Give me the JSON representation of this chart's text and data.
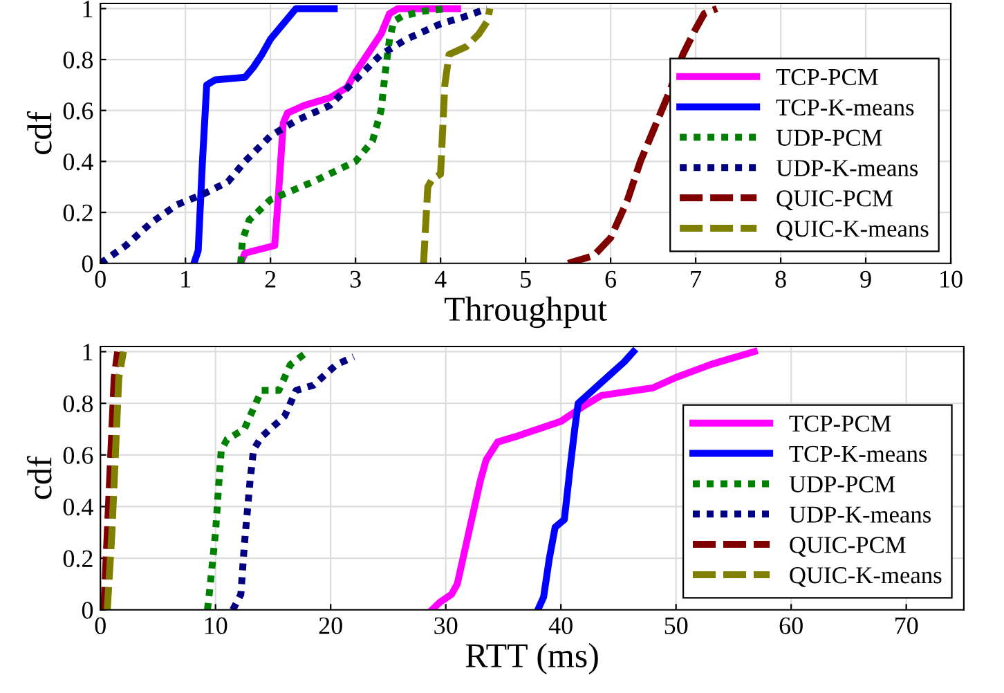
{
  "chart_data": [
    {
      "type": "line",
      "xlabel": "Throughput",
      "ylabel": "cdf",
      "xlim": [
        0,
        10
      ],
      "ylim": [
        0,
        1.02
      ],
      "xticks": [
        0,
        1,
        2,
        3,
        4,
        5,
        6,
        7,
        8,
        9,
        10
      ],
      "yticks": [
        0,
        0.2,
        0.4,
        0.6,
        0.8,
        1
      ],
      "grid": true,
      "legend": "bottom right",
      "marker": "none",
      "series": [
        {
          "name": "TCP-PCM",
          "color": "#ff00ff",
          "line_style": "solid",
          "x": [
            1.65,
            1.7,
            2.05,
            2.1,
            2.15,
            2.2,
            2.4,
            2.7,
            2.9,
            3.0,
            3.1,
            3.2,
            3.3,
            3.4,
            3.5,
            4.2
          ],
          "values": [
            0,
            0.04,
            0.07,
            0.3,
            0.55,
            0.59,
            0.62,
            0.65,
            0.69,
            0.75,
            0.8,
            0.85,
            0.9,
            0.98,
            1,
            1
          ]
        },
        {
          "name": "TCP-K-means",
          "color": "#0000ff",
          "line_style": "solid",
          "x": [
            1.1,
            1.15,
            1.2,
            1.25,
            1.35,
            1.7,
            1.8,
            1.9,
            2.0,
            2.1,
            2.2,
            2.3,
            2.75
          ],
          "values": [
            0,
            0.05,
            0.4,
            0.7,
            0.72,
            0.73,
            0.77,
            0.82,
            0.88,
            0.92,
            0.96,
            1,
            1
          ]
        },
        {
          "name": "UDP-PCM",
          "color": "#008000",
          "line_style": "dotted",
          "x": [
            1.65,
            1.67,
            1.75,
            2.0,
            2.5,
            3.0,
            3.2,
            3.3,
            3.35,
            3.4,
            3.45,
            3.55,
            3.8,
            4.1
          ],
          "values": [
            0,
            0.09,
            0.17,
            0.25,
            0.32,
            0.4,
            0.48,
            0.6,
            0.75,
            0.88,
            0.95,
            0.97,
            0.99,
            1
          ]
        },
        {
          "name": "UDP-K-means",
          "color": "#000080",
          "line_style": "dotted",
          "x": [
            0,
            0.3,
            0.6,
            0.9,
            1.2,
            1.5,
            1.7,
            2.0,
            2.3,
            2.7,
            3.0,
            3.3,
            3.6,
            4.0,
            4.3,
            4.55
          ],
          "values": [
            0,
            0.07,
            0.16,
            0.23,
            0.27,
            0.32,
            0.4,
            0.5,
            0.56,
            0.62,
            0.72,
            0.82,
            0.88,
            0.94,
            0.97,
            1
          ]
        },
        {
          "name": "QUIC-PCM",
          "color": "#800000",
          "line_style": "dashed",
          "x": [
            5.5,
            5.8,
            6.0,
            6.2,
            6.35,
            6.5,
            6.7,
            6.85,
            7.0,
            7.1,
            7.25
          ],
          "values": [
            0,
            0.03,
            0.1,
            0.25,
            0.4,
            0.52,
            0.68,
            0.82,
            0.92,
            0.98,
            1
          ]
        },
        {
          "name": "QUIC-K-means",
          "color": "#808000",
          "line_style": "dashed",
          "x": [
            3.8,
            3.85,
            3.9,
            4.0,
            4.05,
            4.1,
            4.3,
            4.45,
            4.55,
            4.58
          ],
          "values": [
            0,
            0.3,
            0.33,
            0.35,
            0.7,
            0.82,
            0.85,
            0.9,
            0.95,
            1
          ]
        }
      ]
    },
    {
      "type": "line",
      "xlabel": "RTT (ms)",
      "ylabel": "cdf",
      "xlim": [
        0,
        75
      ],
      "ylim": [
        0,
        1.02
      ],
      "xticks": [
        0,
        10,
        20,
        30,
        40,
        50,
        60,
        70
      ],
      "yticks": [
        0,
        0.2,
        0.4,
        0.6,
        0.8,
        1
      ],
      "grid": true,
      "legend": "bottom right",
      "marker": "none",
      "series": [
        {
          "name": "TCP-PCM",
          "color": "#ff00ff",
          "line_style": "solid",
          "x": [
            28.8,
            29.5,
            30.5,
            31,
            32,
            33,
            33.5,
            34.5,
            36,
            38,
            40,
            42,
            43.5,
            48,
            50,
            53,
            54.5,
            56.8
          ],
          "values": [
            0,
            0.03,
            0.06,
            0.1,
            0.3,
            0.5,
            0.58,
            0.65,
            0.67,
            0.7,
            0.73,
            0.79,
            0.83,
            0.86,
            0.9,
            0.95,
            0.97,
            1
          ]
        },
        {
          "name": "TCP-K-means",
          "color": "#0000ff",
          "line_style": "solid",
          "x": [
            38,
            38.5,
            39,
            39.5,
            40.3,
            40.8,
            41.2,
            41.5,
            42.5,
            43.5,
            44.5,
            45.5,
            46.3
          ],
          "values": [
            0,
            0.05,
            0.2,
            0.32,
            0.35,
            0.55,
            0.7,
            0.8,
            0.84,
            0.88,
            0.92,
            0.96,
            1
          ]
        },
        {
          "name": "UDP-PCM",
          "color": "#008000",
          "line_style": "dotted",
          "x": [
            9.3,
            9.5,
            10,
            10.3,
            10.5,
            11,
            12.5,
            14,
            15.5,
            16.5,
            18
          ],
          "values": [
            0,
            0.08,
            0.3,
            0.5,
            0.62,
            0.66,
            0.7,
            0.85,
            0.85,
            0.95,
            1
          ]
        },
        {
          "name": "UDP-K-means",
          "color": "#000080",
          "line_style": "dotted",
          "x": [
            11.5,
            12.2,
            12.5,
            13,
            13.3,
            14,
            16,
            17,
            18.5,
            20.5,
            22
          ],
          "values": [
            0,
            0.06,
            0.25,
            0.5,
            0.62,
            0.67,
            0.75,
            0.85,
            0.87,
            0.95,
            0.98
          ]
        },
        {
          "name": "QUIC-PCM",
          "color": "#800000",
          "line_style": "dashed",
          "x": [
            0.3,
            0.6,
            0.9,
            1.2,
            1.5
          ],
          "values": [
            0,
            0.3,
            0.6,
            0.9,
            1
          ]
        },
        {
          "name": "QUIC-K-means",
          "color": "#808000",
          "line_style": "dashed",
          "x": [
            0.6,
            1,
            1.3,
            1.6,
            2.0
          ],
          "values": [
            0,
            0.3,
            0.6,
            0.9,
            1
          ]
        }
      ]
    }
  ]
}
